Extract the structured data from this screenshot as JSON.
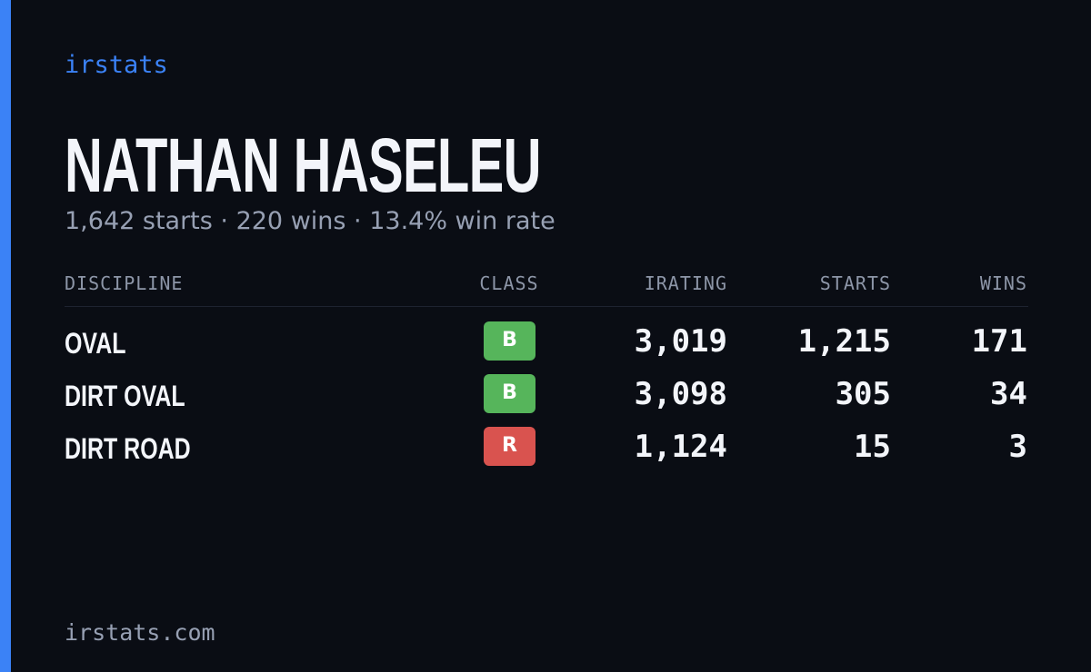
{
  "brand": "irstats",
  "driver_name": "NATHAN HASELEU",
  "summary": "1,642 starts · 220 wins · 13.4% win rate",
  "table": {
    "headers": [
      "DISCIPLINE",
      "CLASS",
      "IRATING",
      "STARTS",
      "WINS"
    ],
    "rows": [
      {
        "discipline": "OVAL",
        "class": "B",
        "irating": "3,019",
        "starts": "1,215",
        "wins": "171"
      },
      {
        "discipline": "DIRT OVAL",
        "class": "B",
        "irating": "3,098",
        "starts": "305",
        "wins": "34"
      },
      {
        "discipline": "DIRT ROAD",
        "class": "R",
        "irating": "1,124",
        "starts": "15",
        "wins": "3"
      }
    ]
  },
  "badge_colors": {
    "B": "#56b55b",
    "R": "#d9534f"
  },
  "footer": "irstats.com"
}
